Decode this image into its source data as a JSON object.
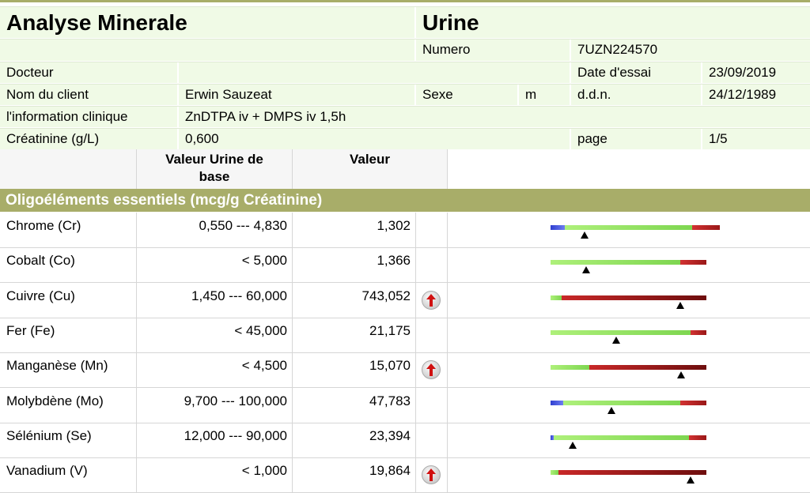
{
  "header": {
    "title": "Analyse Minerale",
    "sample_type": "Urine",
    "numero_label": "Numero",
    "numero_value": "7UZN224570",
    "docteur_label": "Docteur",
    "docteur_value": "",
    "date_label": "Date d'essai",
    "date_value": "23/09/2019",
    "client_label": "Nom du client",
    "client_value": "Erwin Sauzeat",
    "sexe_label": "Sexe",
    "sexe_value": "m",
    "ddn_label": "d.d.n.",
    "ddn_value": "24/12/1989",
    "clinical_label": "l'information clinique",
    "clinical_value": "ZnDTPA iv + DMPS iv 1,5h",
    "creatinine_label": "Créatinine (g/L)",
    "creatinine_value": "0,600",
    "page_label": "page",
    "page_value": "1/5"
  },
  "columns": {
    "ref_line1": "Valeur Urine de",
    "ref_line2": "base",
    "value": "Valeur"
  },
  "section": {
    "title": "Oligoéléments essentiels (mcg/g Créatinine)"
  },
  "colors": {
    "low": "#3b4fd6",
    "normal": "#8ee05a",
    "high": "#b21f1f",
    "section_bg": "#a8ad69",
    "header_bg": "#f0fae6",
    "flag_arrow": "#d01010"
  },
  "rows": [
    {
      "element": "Chrome (Cr)",
      "reference": "0,550 --- 4,830",
      "value": "1,302",
      "flag": false,
      "bar": {
        "low": 0.09,
        "normal": 0.82,
        "high": 0.18,
        "marker": 0.22,
        "elevated": false
      }
    },
    {
      "element": "Cobalt (Co)",
      "reference": "< 5,000",
      "value": "1,366",
      "flag": false,
      "bar": {
        "low": 0,
        "normal": 0.83,
        "high": 0.17,
        "marker": 0.23,
        "elevated": false
      }
    },
    {
      "element": "Cuivre (Cu)",
      "reference": "1,450 --- 60,000",
      "value": "743,052",
      "flag": true,
      "bar": {
        "low": 0,
        "normal": 0.07,
        "high": 0.93,
        "marker": 0.83,
        "elevated": true
      }
    },
    {
      "element": "Fer (Fe)",
      "reference": "< 45,000",
      "value": "21,175",
      "flag": false,
      "bar": {
        "low": 0,
        "normal": 0.9,
        "high": 0.1,
        "marker": 0.42,
        "elevated": false
      }
    },
    {
      "element": "Manganèse (Mn)",
      "reference": "< 4,500",
      "value": "15,070",
      "flag": true,
      "bar": {
        "low": 0,
        "normal": 0.25,
        "high": 0.75,
        "marker": 0.84,
        "elevated": true
      }
    },
    {
      "element": "Molybdène (Mo)",
      "reference": "9,700 --- 100,000",
      "value": "47,783",
      "flag": false,
      "bar": {
        "low": 0.08,
        "normal": 0.75,
        "high": 0.17,
        "marker": 0.39,
        "elevated": false
      }
    },
    {
      "element": "Sélénium (Se)",
      "reference": "12,000 --- 90,000",
      "value": "23,394",
      "flag": false,
      "bar": {
        "low": 0.02,
        "normal": 0.87,
        "high": 0.11,
        "marker": 0.14,
        "elevated": false
      }
    },
    {
      "element": "Vanadium (V)",
      "reference": "< 1,000",
      "value": "19,864",
      "flag": true,
      "bar": {
        "low": 0,
        "normal": 0.05,
        "high": 0.95,
        "marker": 0.9,
        "elevated": true
      }
    }
  ]
}
